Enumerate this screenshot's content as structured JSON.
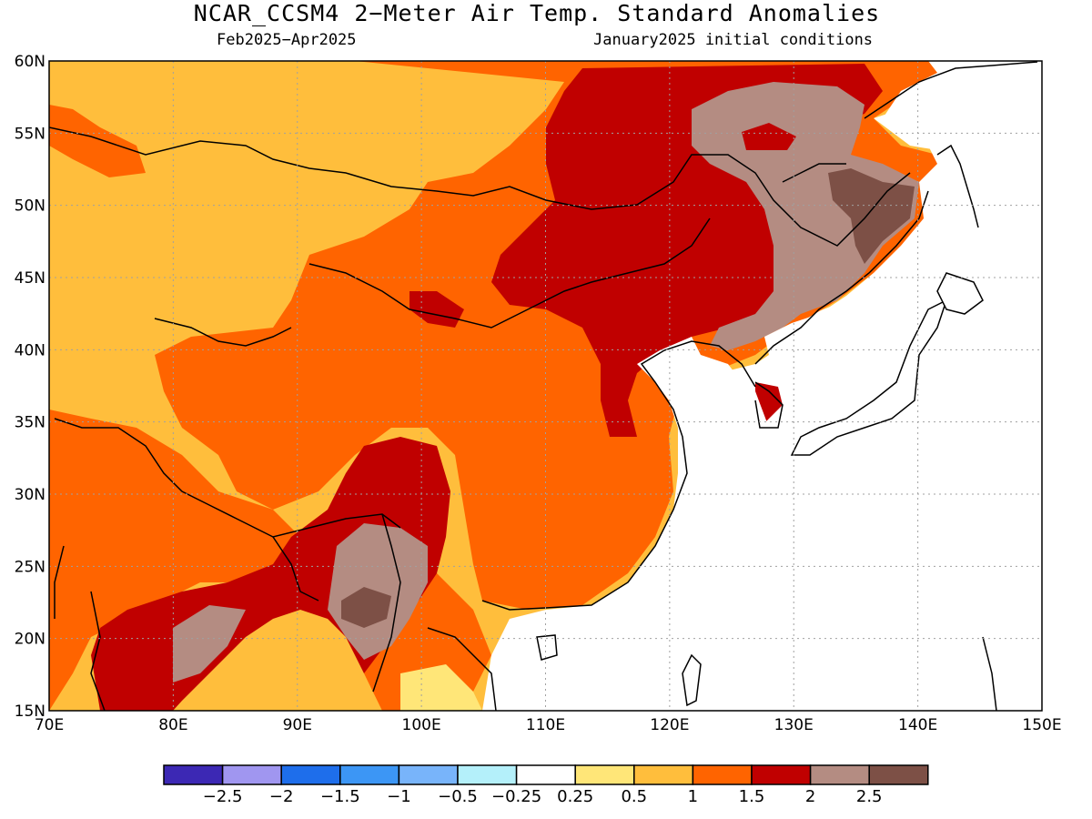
{
  "title": "NCAR_CCSM4 2−Meter Air Temp. Standard Anomalies",
  "subtitle_left": "Feb2025−Apr2025",
  "subtitle_right": "January2025 initial conditions",
  "map": {
    "lon_range": [
      70,
      150
    ],
    "lat_range": [
      15,
      60
    ],
    "lon_ticks": [
      "70E",
      "80E",
      "90E",
      "100E",
      "110E",
      "120E",
      "130E",
      "140E",
      "150E"
    ],
    "lat_ticks": [
      "15N",
      "20N",
      "25N",
      "30N",
      "35N",
      "40N",
      "45N",
      "50N",
      "55N",
      "60N"
    ],
    "grid_lines": "dotted"
  },
  "colorbar": {
    "colors": [
      "#3c28b4",
      "#a096f0",
      "#1e6eeb",
      "#3c96f5",
      "#78b4fa",
      "#b4f0fa",
      "#ffffff",
      "#ffe678",
      "#ffbe3c",
      "#ff6400",
      "#c00000",
      "#b48c82",
      "#7d5046"
    ],
    "labels": [
      "−2.5",
      "−2",
      "−1.5",
      "−1",
      "−0.5",
      "−0.25",
      "0.25",
      "0.5",
      "1",
      "1.5",
      "2",
      "2.5"
    ]
  },
  "colors": {
    "light_orange": "#ffbe3c",
    "orange": "#ff6400",
    "dark_red": "#c00000",
    "taupe": "#b48c82",
    "brown": "#7d5046",
    "yellow": "#ffe678"
  }
}
